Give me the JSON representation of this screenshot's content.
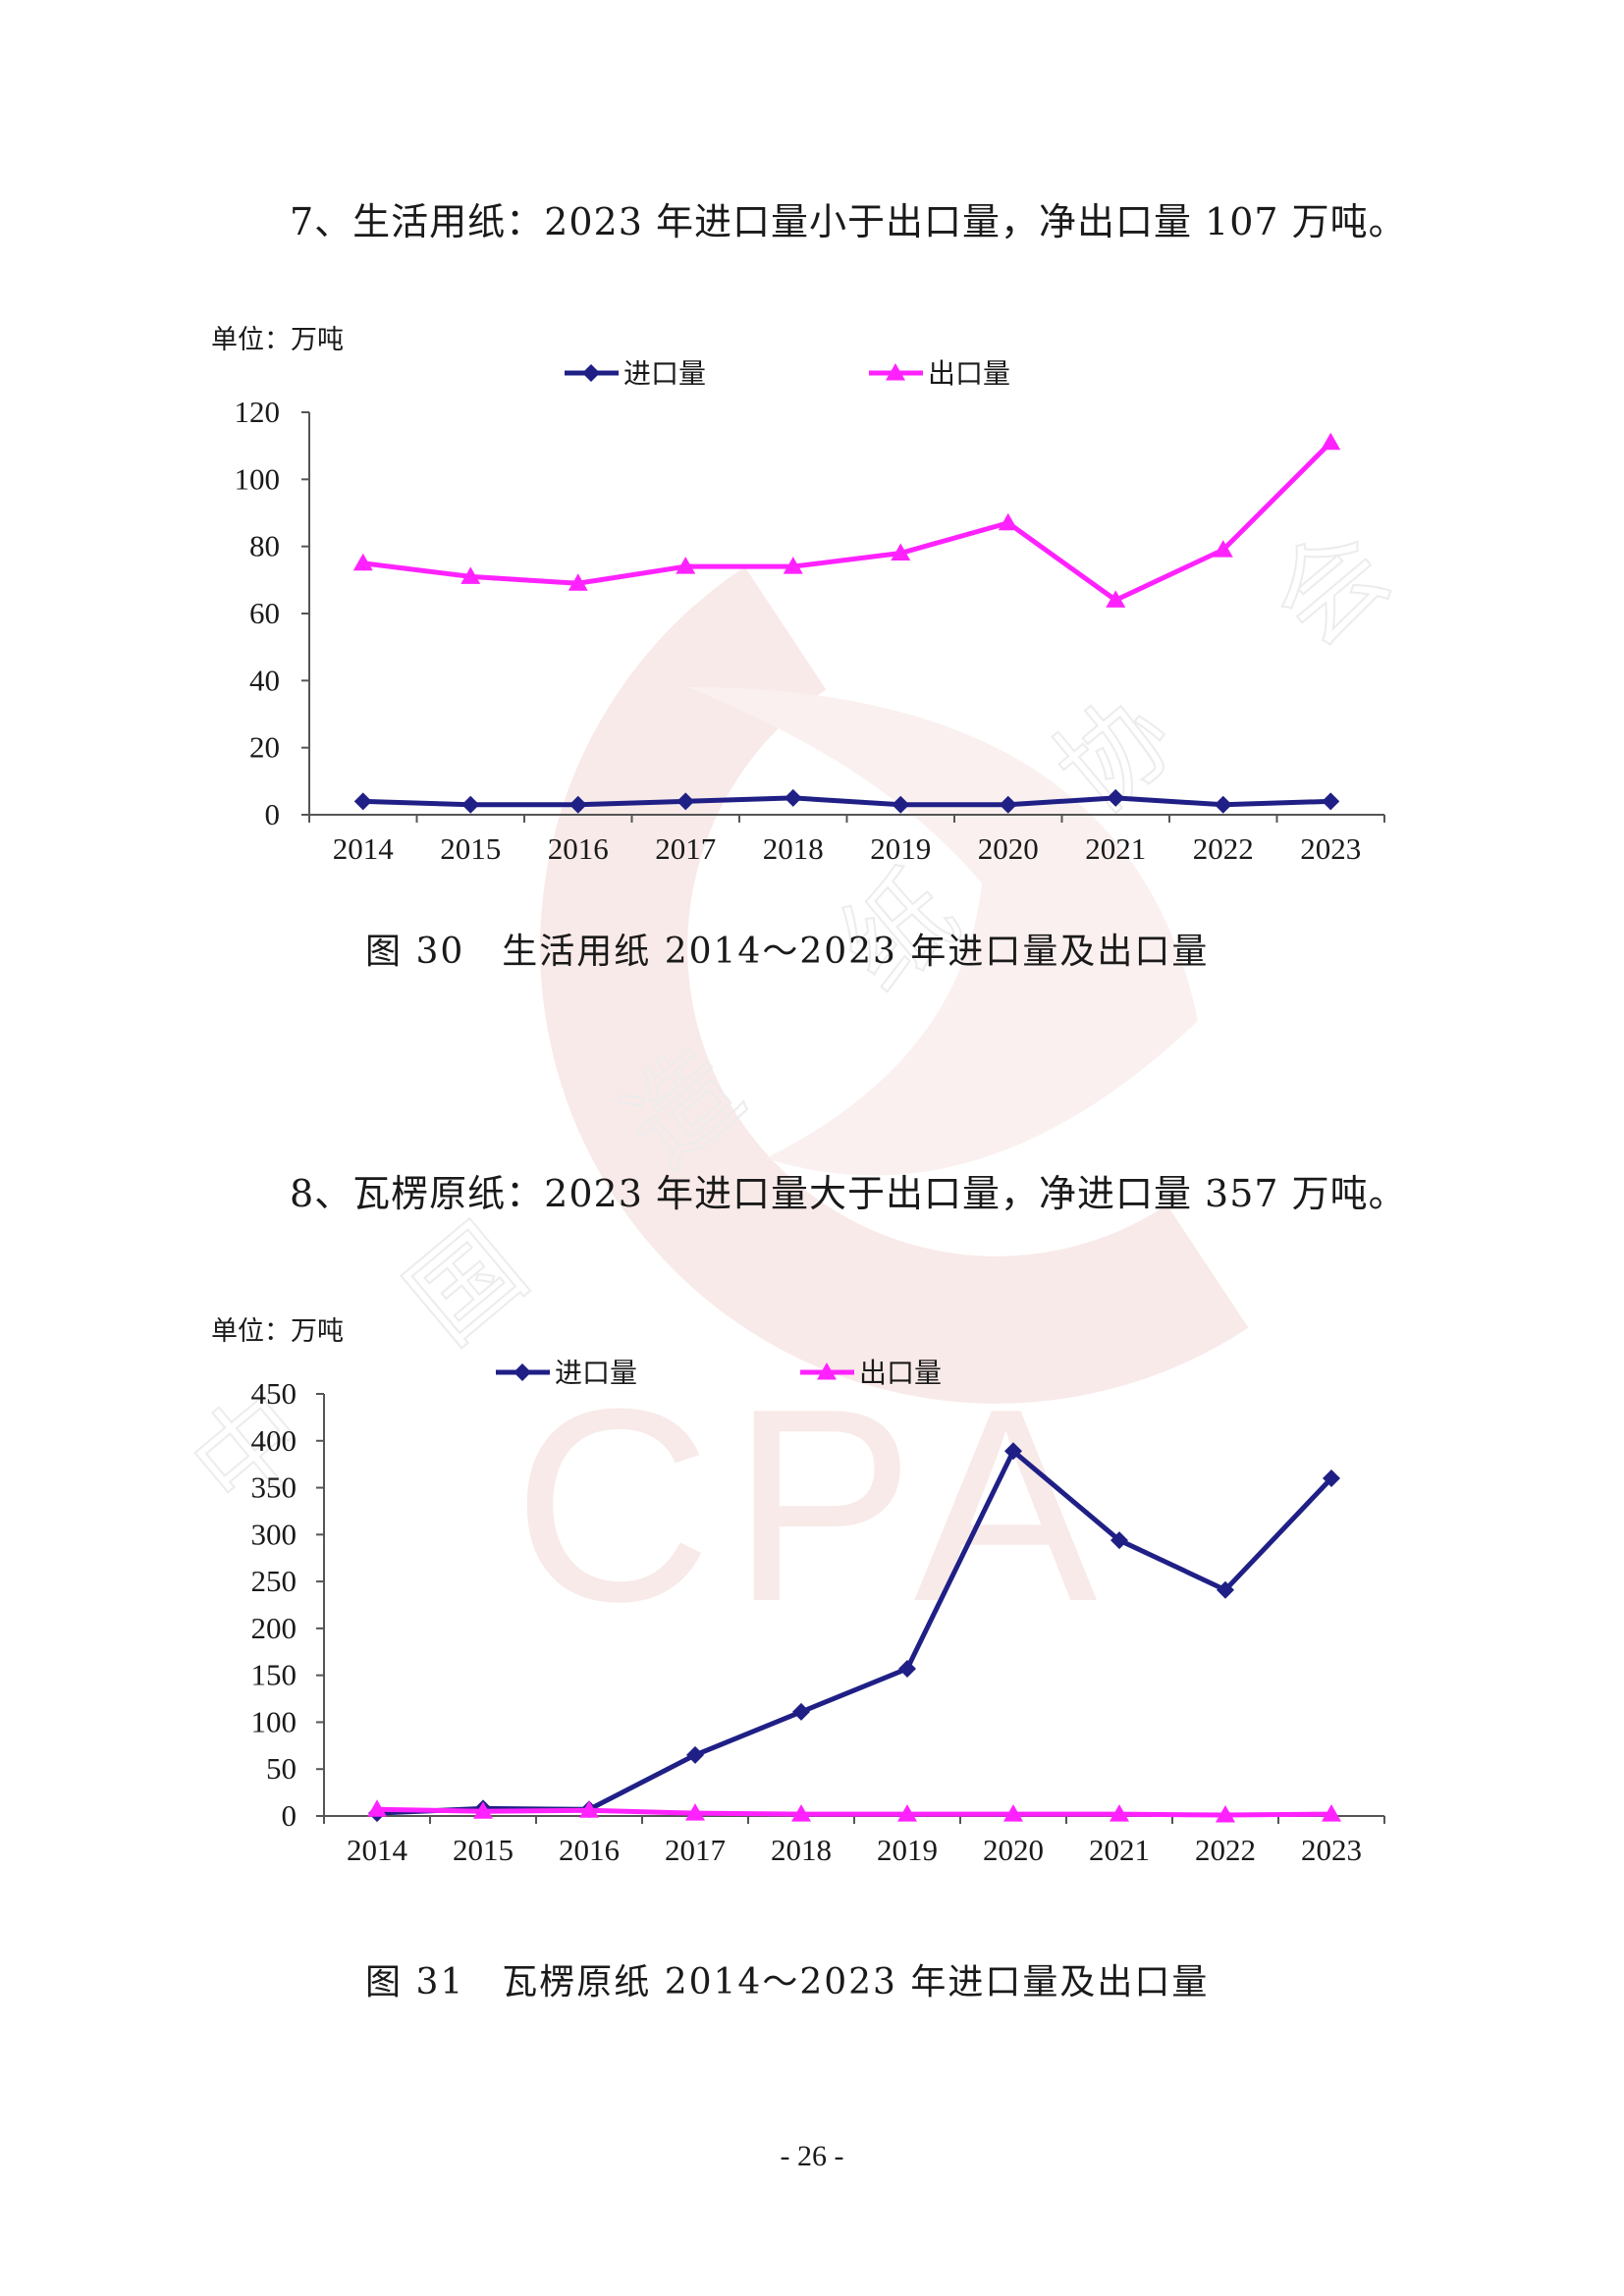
{
  "document": {
    "page_number": "- 26 -",
    "watermark": {
      "logo_letters": "CPA",
      "org_chars": [
        "中",
        "国",
        "造",
        "纸",
        "协",
        "会"
      ],
      "color": "#f3d9d6"
    }
  },
  "sections": [
    {
      "heading": "7、生活用纸：2023 年进口量小于出口量，净出口量 107 万吨。",
      "caption": "图 30　生活用纸 2014～2023 年进口量及出口量"
    },
    {
      "heading": "8、瓦楞原纸：2023 年进口量大于出口量，净进口量 357 万吨。",
      "caption": "图 31　瓦楞原纸 2014～2023 年进口量及出口量"
    }
  ],
  "chart_data": [
    {
      "type": "line",
      "unit_label": "单位：万吨",
      "categories": [
        "2014",
        "2015",
        "2016",
        "2017",
        "2018",
        "2019",
        "2020",
        "2021",
        "2022",
        "2023"
      ],
      "ylim": [
        0,
        120
      ],
      "yticks": [
        0,
        20,
        40,
        60,
        80,
        100,
        120
      ],
      "grid": false,
      "legend_position": "top",
      "series": [
        {
          "name": "进口量",
          "color": "#1f1f86",
          "marker": "diamond",
          "values": [
            4,
            3,
            3,
            4,
            5,
            3,
            3,
            5,
            3,
            4
          ]
        },
        {
          "name": "出口量",
          "color": "#ff22ff",
          "marker": "triangle",
          "values": [
            75,
            71,
            69,
            74,
            74,
            78,
            87,
            64,
            79,
            111
          ]
        }
      ]
    },
    {
      "type": "line",
      "unit_label": "单位：万吨",
      "categories": [
        "2014",
        "2015",
        "2016",
        "2017",
        "2018",
        "2019",
        "2020",
        "2021",
        "2022",
        "2023"
      ],
      "ylim": [
        0,
        450
      ],
      "yticks": [
        0,
        50,
        100,
        150,
        200,
        250,
        300,
        350,
        400,
        450
      ],
      "grid": false,
      "legend_position": "top",
      "series": [
        {
          "name": "进口量",
          "color": "#1f1f86",
          "marker": "diamond",
          "values": [
            3,
            8,
            7,
            65,
            111,
            157,
            389,
            294,
            241,
            360
          ]
        },
        {
          "name": "出口量",
          "color": "#ff22ff",
          "marker": "triangle",
          "values": [
            7,
            5,
            6,
            3,
            2,
            2,
            2,
            2,
            1,
            2
          ]
        }
      ]
    }
  ]
}
